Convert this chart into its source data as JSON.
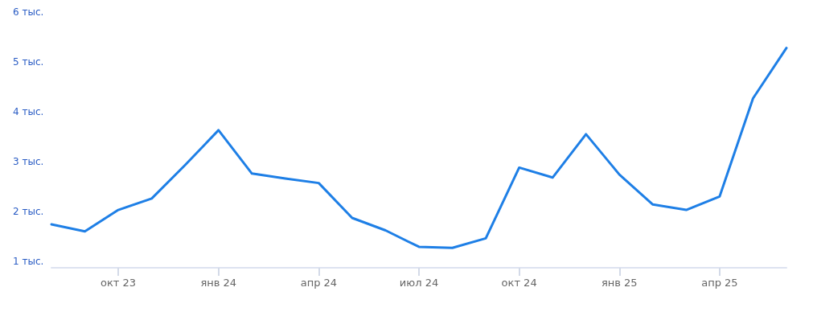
{
  "chart_data": {
    "type": "line",
    "categories": [
      null,
      null,
      "окт 23",
      null,
      null,
      "янв 24",
      null,
      null,
      "апр 24",
      null,
      null,
      "июл 24",
      null,
      null,
      "окт 24",
      null,
      null,
      "янв 25",
      null,
      null,
      "апр 25",
      null,
      null
    ],
    "series": [
      {
        "color": "#1e7fe6",
        "values": [
          1.74,
          1.6,
          2.03,
          2.26,
          2.93,
          3.63,
          2.76,
          2.66,
          2.57,
          1.87,
          1.62,
          1.29,
          1.27,
          1.46,
          2.88,
          2.68,
          3.55,
          2.74,
          2.14,
          2.03,
          2.3,
          4.27,
          5.28
        ]
      }
    ],
    "ylim": [
      0.87,
      6
    ],
    "yticks": [
      {
        "value": 1,
        "label": "1 тыс."
      },
      {
        "value": 2,
        "label": "2 тыс."
      },
      {
        "value": 3,
        "label": "3 тыс."
      },
      {
        "value": 4,
        "label": "4 тыс."
      },
      {
        "value": 5,
        "label": "5 тыс."
      },
      {
        "value": 6,
        "label": "6 тыс."
      }
    ],
    "grid": false,
    "marker": "none",
    "line_style": "solid"
  }
}
